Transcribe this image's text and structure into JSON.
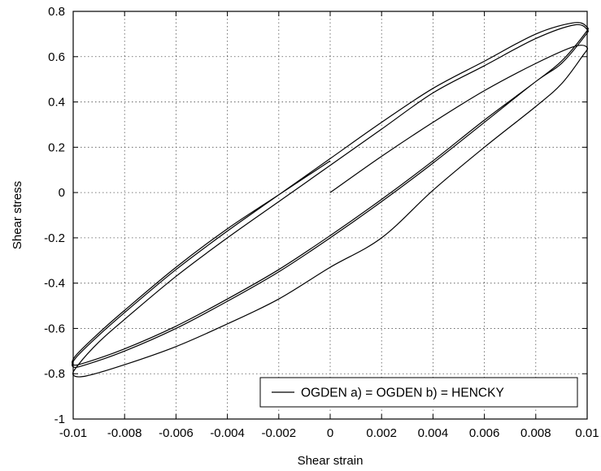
{
  "chart_data": {
    "type": "line",
    "title": "",
    "xlabel": "Shear strain",
    "ylabel": "Shear stress",
    "xlim": [
      -0.01,
      0.01
    ],
    "ylim": [
      -1,
      0.8
    ],
    "xticks": [
      -0.01,
      -0.008,
      -0.006,
      -0.004,
      -0.002,
      0,
      0.002,
      0.004,
      0.006,
      0.008,
      0.01
    ],
    "xtick_labels": [
      "-0.01",
      "-0.008",
      "-0.006",
      "-0.004",
      "-0.002",
      "0",
      "0.002",
      "0.004",
      "0.006",
      "0.008",
      "0.01"
    ],
    "yticks": [
      -1,
      -0.8,
      -0.6,
      -0.4,
      -0.2,
      0,
      0.2,
      0.4,
      0.6,
      0.8
    ],
    "ytick_labels": [
      "-1",
      "-0.8",
      "-0.6",
      "-0.4",
      "-0.2",
      "0",
      "0.2",
      "0.4",
      "0.6",
      "0.8"
    ],
    "grid": true,
    "legend_position": "bottom-right",
    "legend": [
      "OGDEN a) = OGDEN b) = HENCKY"
    ],
    "series": [
      {
        "name": "OGDEN a) = OGDEN b) = HENCKY",
        "color": "#000000",
        "x": [
          0,
          0.002,
          0.004,
          0.006,
          0.008,
          0.0095,
          0.01,
          0.0098,
          0.009,
          0.008,
          0.006,
          0.004,
          0.002,
          0,
          -0.002,
          -0.004,
          -0.006,
          -0.008,
          -0.0095,
          -0.01,
          -0.0098,
          -0.009,
          -0.008,
          -0.006,
          -0.004,
          -0.002,
          0,
          0.002,
          0.004,
          0.006,
          0.008,
          0.0095,
          0.01,
          0.0099,
          0.009,
          0.008,
          0.006,
          0.004,
          0.002,
          0,
          -0.002,
          -0.004,
          -0.006,
          -0.008,
          -0.0095,
          -0.01,
          -0.0099,
          -0.009,
          -0.008,
          -0.006,
          -0.004,
          -0.002,
          0,
          0.002,
          0.004,
          0.006,
          0.008,
          0.0095,
          0.01,
          0.0099,
          0.009,
          0.008,
          0.006,
          0.004,
          0.002,
          0,
          -0.002,
          -0.004,
          -0.006,
          -0.008,
          -0.0095,
          -0.01,
          -0.0099,
          -0.009,
          -0.008,
          -0.006,
          -0.004,
          -0.002,
          0
        ],
        "y": [
          0,
          0.16,
          0.31,
          0.45,
          0.57,
          0.645,
          0.64,
          0.6,
          0.48,
          0.38,
          0.2,
          0.01,
          -0.2,
          -0.33,
          -0.47,
          -0.58,
          -0.68,
          -0.76,
          -0.81,
          -0.805,
          -0.76,
          -0.66,
          -0.56,
          -0.37,
          -0.2,
          -0.04,
          0.12,
          0.28,
          0.44,
          0.56,
          0.68,
          0.74,
          0.72,
          0.69,
          0.57,
          0.49,
          0.31,
          0.13,
          -0.04,
          -0.2,
          -0.35,
          -0.48,
          -0.6,
          -0.7,
          -0.76,
          -0.77,
          -0.73,
          -0.63,
          -0.53,
          -0.34,
          -0.17,
          -0.01,
          0.15,
          0.31,
          0.46,
          0.58,
          0.7,
          0.75,
          0.73,
          0.7,
          0.58,
          0.49,
          0.32,
          0.14,
          -0.03,
          -0.19,
          -0.34,
          -0.47,
          -0.59,
          -0.69,
          -0.75,
          -0.76,
          -0.72,
          -0.62,
          -0.52,
          -0.33,
          -0.16,
          -0.01,
          0.14
        ]
      }
    ]
  }
}
